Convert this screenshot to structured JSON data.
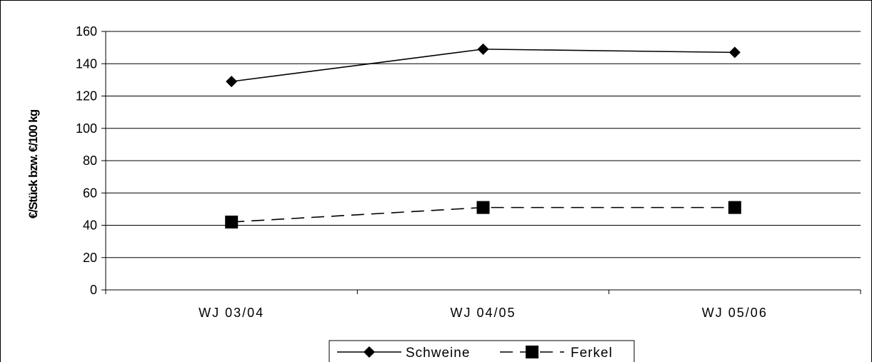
{
  "chart_data": {
    "type": "line",
    "categories": [
      "WJ 03/04",
      "WJ 04/05",
      "WJ 05/06"
    ],
    "series": [
      {
        "name": "Schweine",
        "values": [
          129,
          149,
          147
        ],
        "line": "solid",
        "marker": "diamond",
        "color": "#000000"
      },
      {
        "name": "Ferkel",
        "values": [
          42,
          51,
          51
        ],
        "line": "dashed",
        "marker": "square",
        "color": "#000000"
      }
    ],
    "title": "",
    "xlabel": "",
    "ylabel": "€/Stück bzw. €/100 kg",
    "ylim": [
      0,
      160
    ],
    "yticks": [
      0,
      20,
      40,
      60,
      80,
      100,
      120,
      140,
      160
    ],
    "grid": true,
    "legend": "bottom"
  }
}
